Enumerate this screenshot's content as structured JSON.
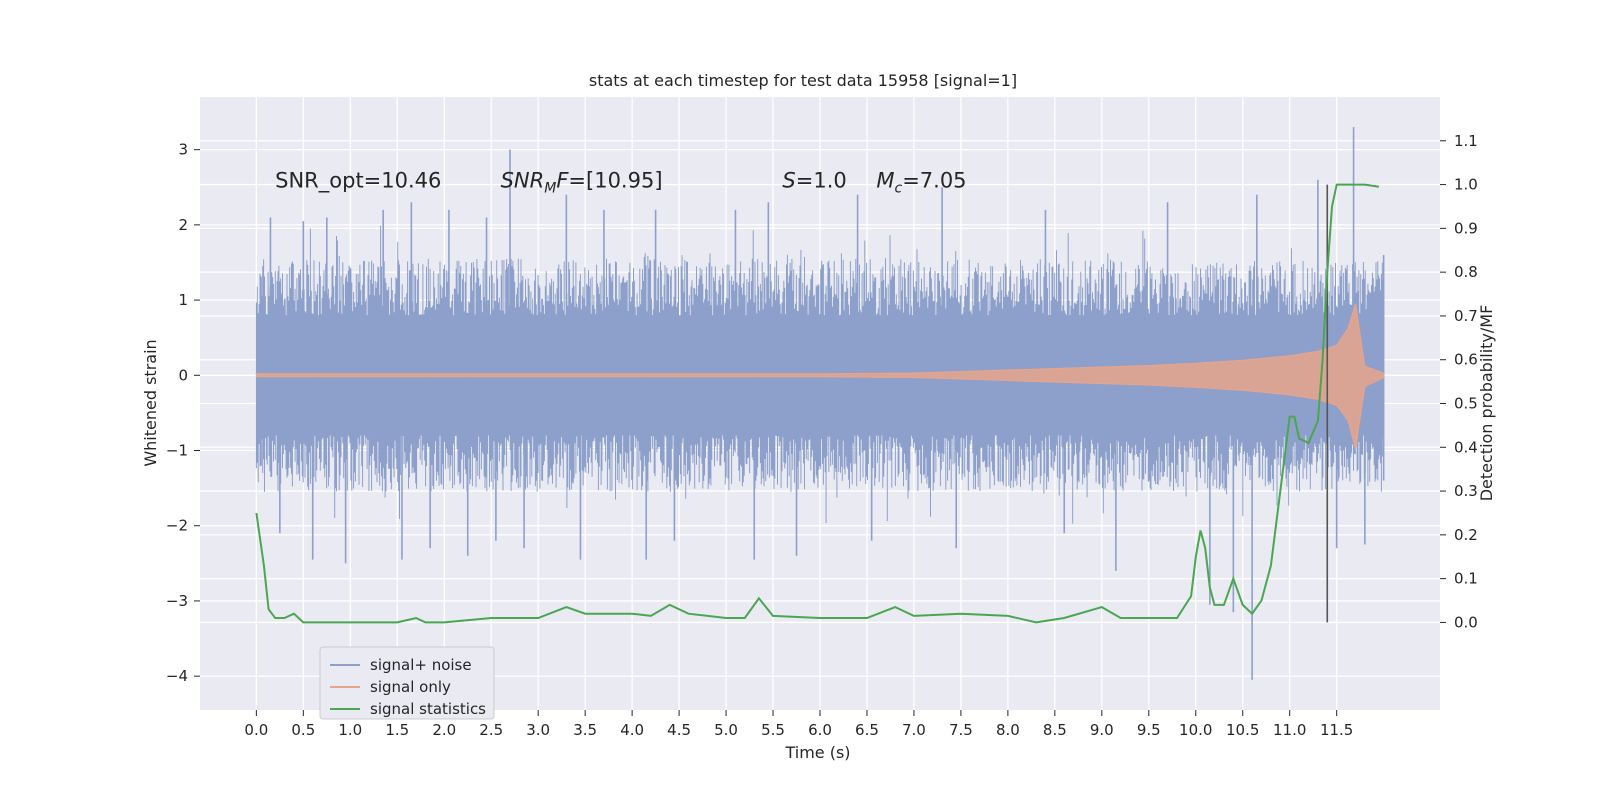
{
  "chart_data": {
    "type": "line",
    "title": "stats at each timestep for test data 15958 [signal=1]",
    "xlabel": "Time (s)",
    "ylabel": "Whitened strain",
    "ylabel_right": "Detection probability/MF",
    "xlim": [
      -0.6,
      12.6
    ],
    "ylim": [
      -4.45,
      3.7
    ],
    "ylim_right": [
      -0.2,
      1.2
    ],
    "grid": true,
    "x_ticks": [
      "0.0",
      "0.5",
      "1.0",
      "1.5",
      "2.0",
      "2.5",
      "3.0",
      "3.5",
      "4.0",
      "4.5",
      "5.0",
      "5.5",
      "6.0",
      "6.5",
      "7.0",
      "7.5",
      "8.0",
      "8.5",
      "9.0",
      "9.5",
      "10.0",
      "10.5",
      "11.0",
      "11.5"
    ],
    "y_ticks": [
      "3",
      "2",
      "1",
      "0",
      "−1",
      "−2",
      "−3",
      "−4"
    ],
    "y_ticks_right": [
      "1.1",
      "1.0",
      "0.9",
      "0.8",
      "0.7",
      "0.6",
      "0.5",
      "0.4",
      "0.3",
      "0.2",
      "0.1",
      "0.0"
    ],
    "annotations": [
      {
        "text": "SNR_opt=10.46",
        "x": 0.2,
        "y": 2.5
      },
      {
        "text": "SNR_MF=[10.95]",
        "x": 2.6,
        "y": 2.5
      },
      {
        "text": "S=1.0",
        "x": 5.6,
        "y": 2.5
      },
      {
        "text": "M_c=7.05",
        "x": 6.6,
        "y": 2.5
      }
    ],
    "vline": {
      "x": 11.4,
      "y_right": [
        0.0,
        1.0
      ],
      "color": "#555555"
    },
    "legend": {
      "position": "lower-left",
      "entries": [
        "signal+ noise",
        "signal only",
        "signal statistics"
      ]
    },
    "series": [
      {
        "name": "signal+ noise",
        "axis": "left",
        "kind": "band",
        "color": "#8da0cb",
        "x_range": [
          0.0,
          12.0
        ],
        "typical_range": [
          -1.55,
          1.55
        ],
        "peaks": [
          {
            "x": 0.05,
            "y": 1.3
          },
          {
            "x": 0.05,
            "y": -1.2
          },
          {
            "x": 0.15,
            "y": 2.1
          },
          {
            "x": 0.25,
            "y": -2.1
          },
          {
            "x": 0.5,
            "y": 2.05
          },
          {
            "x": 0.6,
            "y": -2.45
          },
          {
            "x": 0.75,
            "y": 2.1
          },
          {
            "x": 0.95,
            "y": -2.5
          },
          {
            "x": 1.35,
            "y": 2.2
          },
          {
            "x": 1.55,
            "y": -2.45
          },
          {
            "x": 1.65,
            "y": 2.3
          },
          {
            "x": 1.85,
            "y": -2.3
          },
          {
            "x": 2.05,
            "y": 2.2
          },
          {
            "x": 2.25,
            "y": -2.4
          },
          {
            "x": 2.45,
            "y": 2.1
          },
          {
            "x": 2.55,
            "y": -2.2
          },
          {
            "x": 2.7,
            "y": 3.0
          },
          {
            "x": 2.85,
            "y": -2.3
          },
          {
            "x": 3.3,
            "y": 2.4
          },
          {
            "x": 3.45,
            "y": -2.45
          },
          {
            "x": 3.7,
            "y": 2.2
          },
          {
            "x": 4.15,
            "y": -2.45
          },
          {
            "x": 4.25,
            "y": 2.2
          },
          {
            "x": 4.45,
            "y": -2.2
          },
          {
            "x": 5.1,
            "y": 2.2
          },
          {
            "x": 5.3,
            "y": -2.45
          },
          {
            "x": 5.45,
            "y": 2.3
          },
          {
            "x": 5.75,
            "y": -2.4
          },
          {
            "x": 6.4,
            "y": 2.4
          },
          {
            "x": 6.55,
            "y": -2.2
          },
          {
            "x": 7.3,
            "y": 2.5
          },
          {
            "x": 7.45,
            "y": -2.3
          },
          {
            "x": 8.4,
            "y": 2.2
          },
          {
            "x": 8.6,
            "y": -2.1
          },
          {
            "x": 9.15,
            "y": -2.6
          },
          {
            "x": 9.7,
            "y": 2.3
          },
          {
            "x": 10.15,
            "y": -3.05
          },
          {
            "x": 10.4,
            "y": -3.15
          },
          {
            "x": 10.6,
            "y": -4.05
          },
          {
            "x": 10.65,
            "y": 2.4
          },
          {
            "x": 11.3,
            "y": 2.6
          },
          {
            "x": 11.5,
            "y": -2.3
          },
          {
            "x": 11.68,
            "y": 3.3
          },
          {
            "x": 11.8,
            "y": -2.25
          },
          {
            "x": 12.0,
            "y": 1.6
          },
          {
            "x": 12.0,
            "y": -1.4
          }
        ]
      },
      {
        "name": "signal only",
        "axis": "left",
        "kind": "envelope",
        "color": "#e8a48b",
        "x": [
          0.0,
          6.0,
          7.0,
          7.5,
          8.0,
          8.5,
          9.0,
          9.5,
          10.0,
          10.5,
          11.0,
          11.3,
          11.5,
          11.62,
          11.7,
          11.8,
          12.0
        ],
        "upper": [
          0.02,
          0.02,
          0.03,
          0.05,
          0.07,
          0.09,
          0.11,
          0.13,
          0.16,
          0.2,
          0.26,
          0.32,
          0.4,
          0.62,
          0.95,
          0.12,
          0.03
        ],
        "lower": [
          -0.02,
          -0.02,
          -0.03,
          -0.05,
          -0.07,
          -0.09,
          -0.11,
          -0.13,
          -0.16,
          -0.2,
          -0.26,
          -0.32,
          -0.4,
          -0.6,
          -0.98,
          -0.15,
          -0.03
        ]
      },
      {
        "name": "signal statistics",
        "axis": "right",
        "kind": "line",
        "color": "#4aa650",
        "x": [
          0.0,
          0.08,
          0.13,
          0.2,
          0.3,
          0.4,
          0.5,
          1.0,
          1.5,
          1.7,
          1.8,
          2.0,
          2.5,
          3.0,
          3.3,
          3.5,
          4.0,
          4.2,
          4.4,
          4.6,
          5.0,
          5.2,
          5.35,
          5.5,
          6.0,
          6.5,
          6.8,
          7.0,
          7.5,
          8.0,
          8.3,
          8.6,
          9.0,
          9.2,
          9.5,
          9.8,
          9.95,
          10.0,
          10.05,
          10.1,
          10.15,
          10.2,
          10.3,
          10.4,
          10.5,
          10.6,
          10.7,
          10.8,
          10.9,
          11.0,
          11.05,
          11.1,
          11.2,
          11.3,
          11.35,
          11.4,
          11.45,
          11.5,
          11.6,
          11.8,
          11.95
        ],
        "values": [
          0.25,
          0.13,
          0.03,
          0.01,
          0.01,
          0.02,
          0.0,
          0.0,
          0.0,
          0.01,
          0.0,
          0.0,
          0.01,
          0.01,
          0.035,
          0.02,
          0.02,
          0.015,
          0.04,
          0.02,
          0.01,
          0.01,
          0.055,
          0.015,
          0.01,
          0.01,
          0.035,
          0.015,
          0.02,
          0.015,
          0.0,
          0.01,
          0.035,
          0.01,
          0.01,
          0.01,
          0.06,
          0.15,
          0.21,
          0.17,
          0.08,
          0.04,
          0.04,
          0.1,
          0.04,
          0.02,
          0.05,
          0.13,
          0.3,
          0.47,
          0.47,
          0.42,
          0.41,
          0.46,
          0.6,
          0.8,
          0.95,
          1.0,
          1.0,
          1.0,
          0.995
        ]
      }
    ]
  }
}
